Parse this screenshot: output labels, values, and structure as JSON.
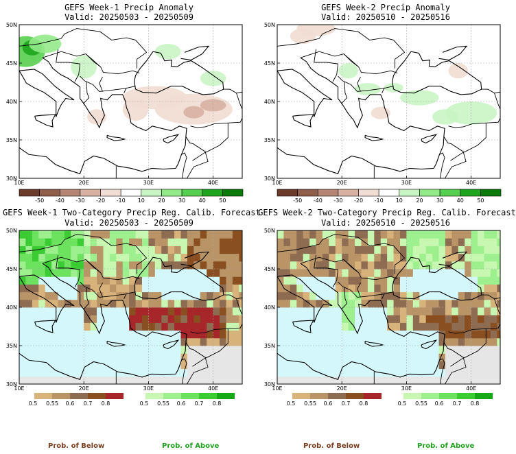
{
  "panels": [
    {
      "title": "GEFS Week-1 Precip Anomaly",
      "valid": "Valid: 20250503 - 20250509"
    },
    {
      "title": "GEFS Week-2 Precip Anomaly",
      "valid": "Valid: 20250510 - 20250516"
    },
    {
      "title": "GEFS Week-1 Two-Category Precip Reg. Calib. Forecast",
      "valid": "Valid: 20250503 - 20250509"
    },
    {
      "title": "GEFS Week-2 Two-Category Precip Reg. Calib. Forecast",
      "valid": "Valid: 20250510 - 20250516"
    }
  ],
  "lat_labels": [
    "50N",
    "45N",
    "40N",
    "35N",
    "30N"
  ],
  "lon_labels": [
    "10E",
    "20E",
    "30E",
    "40E"
  ],
  "anomaly_colorbar": {
    "ticks": [
      "-50",
      "-40",
      "-30",
      "-20",
      "-10",
      "10",
      "20",
      "30",
      "40",
      "50"
    ],
    "colors": [
      "#6b3b2a",
      "#8f5f4c",
      "#b48574",
      "#d8b1a3",
      "#f1ddd3",
      "#ffffff",
      "#c9f5c4",
      "#93ea89",
      "#55cf4e",
      "#1ea51e",
      "#0a7a0a"
    ]
  },
  "below_colorbar": {
    "ticks": [
      "0.5",
      "0.55",
      "0.6",
      "0.7",
      "0.8"
    ],
    "colors": [
      "#d8b27b",
      "#b99466",
      "#8e6c52",
      "#8a4f21",
      "#a6262a"
    ]
  },
  "above_colorbar": {
    "ticks": [
      "0.5",
      "0.55",
      "0.6",
      "0.7",
      "0.8"
    ],
    "colors": [
      "#c8f7b2",
      "#9df08d",
      "#6de25f",
      "#3bcc33",
      "#16a816"
    ]
  },
  "legends": {
    "below": "Prob. of Below",
    "above": "Prob. of Above"
  },
  "colors": {
    "sea": "#d4f7fb",
    "below_title": "#7a3d1e",
    "above_title": "#21a021",
    "nodata": "#e6e6e6"
  }
}
